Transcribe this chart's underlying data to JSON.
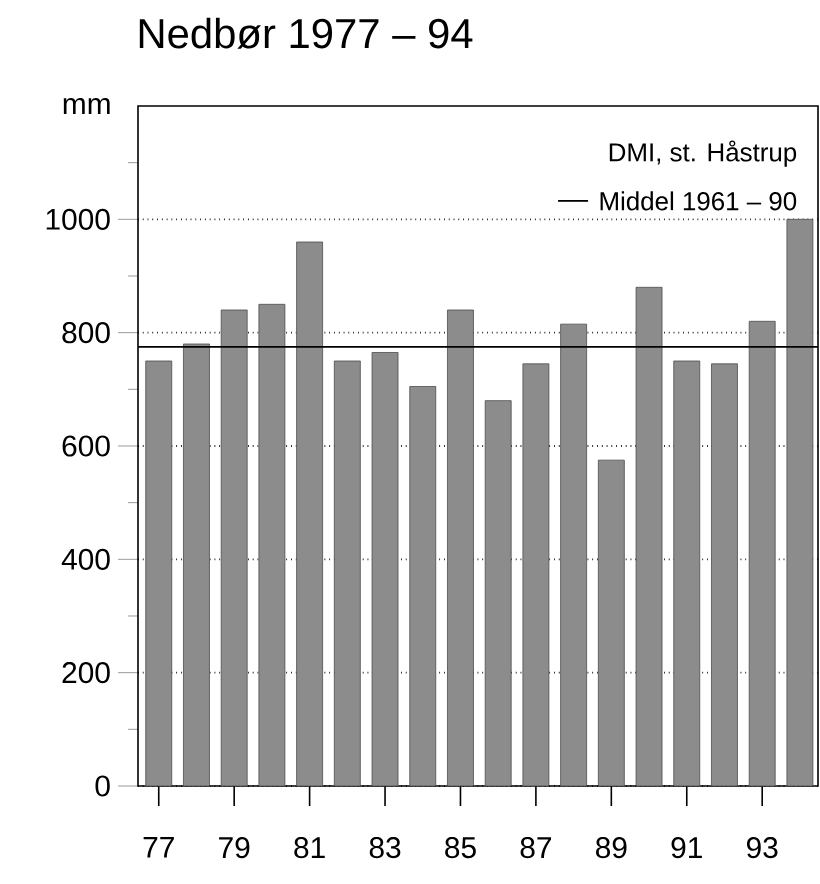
{
  "chart_data": {
    "type": "bar",
    "title": "Nedbør 1977 – 94",
    "ylabel": "mm",
    "categories": [
      "77",
      null,
      "79",
      null,
      "81",
      null,
      "83",
      null,
      "85",
      null,
      "87",
      null,
      "89",
      null,
      "91",
      null,
      "93",
      null
    ],
    "values": [
      750,
      780,
      840,
      850,
      960,
      750,
      765,
      705,
      840,
      680,
      745,
      815,
      575,
      880,
      750,
      745,
      820,
      1000
    ],
    "color": "#8c8c8c",
    "ylim": [
      0,
      1200
    ],
    "yticks": [
      0,
      {
        "value": 100,
        "label": null
      },
      200,
      {
        "value": 300,
        "label": null
      },
      400,
      {
        "value": 500,
        "label": null
      },
      600,
      {
        "value": 700,
        "label": null
      },
      800,
      {
        "value": 900,
        "label": null
      },
      1000,
      {
        "value": 1100,
        "label": null
      }
    ],
    "grid": "y",
    "ref_lines": [
      {
        "axis": "y",
        "value": 775,
        "label": "Middel 1961 – 90",
        "color": "#000000"
      }
    ],
    "annotations": [
      "DMI, st. Håstrup"
    ]
  }
}
